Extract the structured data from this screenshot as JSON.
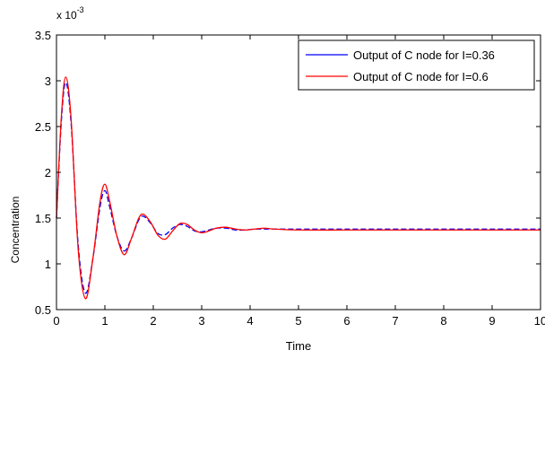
{
  "chart_data": {
    "type": "line",
    "title": "",
    "xlabel": "Time",
    "ylabel": "Concentration",
    "y_multiplier_label": "x 10",
    "y_multiplier_exponent": "-3",
    "xlim": [
      0,
      10
    ],
    "ylim": [
      0.5,
      3.5
    ],
    "x_ticks": [
      0,
      1,
      2,
      3,
      4,
      5,
      6,
      7,
      8,
      9,
      10
    ],
    "y_ticks": [
      0.5,
      1,
      1.5,
      2,
      2.5,
      3,
      3.5
    ],
    "x_tick_labels": [
      "0",
      "1",
      "2",
      "3",
      "4",
      "5",
      "6",
      "7",
      "8",
      "9",
      "10"
    ],
    "y_tick_labels": [
      "0.5",
      "1",
      "1.5",
      "2",
      "2.5",
      "3",
      "3.5"
    ],
    "grid": false,
    "legend_position": "top-right",
    "series": [
      {
        "name": "Output of C node for I=0.36",
        "color": "#0000ff",
        "x": [
          0,
          0.1,
          0.19,
          0.3,
          0.45,
          0.6,
          0.75,
          0.9,
          1.0,
          1.1,
          1.25,
          1.4,
          1.55,
          1.7,
          1.8,
          1.95,
          2.1,
          2.25,
          2.4,
          2.55,
          2.7,
          2.85,
          3.0,
          3.15,
          3.3,
          3.5,
          3.7,
          3.9,
          4.1,
          4.3,
          4.5,
          5.0,
          6.0,
          7.0,
          8.0,
          9.0,
          10.0
        ],
        "y": [
          1.5,
          2.55,
          2.98,
          2.55,
          1.2,
          0.68,
          1.05,
          1.62,
          1.8,
          1.62,
          1.3,
          1.14,
          1.28,
          1.48,
          1.52,
          1.44,
          1.33,
          1.32,
          1.39,
          1.43,
          1.41,
          1.36,
          1.35,
          1.37,
          1.39,
          1.39,
          1.37,
          1.37,
          1.38,
          1.38,
          1.38,
          1.38,
          1.38,
          1.38,
          1.38,
          1.38,
          1.38
        ]
      },
      {
        "name": "Output of C node for I=0.6",
        "color": "#ff0000",
        "x": [
          0,
          0.1,
          0.19,
          0.3,
          0.45,
          0.6,
          0.75,
          0.9,
          1.0,
          1.1,
          1.25,
          1.4,
          1.55,
          1.7,
          1.8,
          1.95,
          2.1,
          2.25,
          2.4,
          2.55,
          2.7,
          2.85,
          3.0,
          3.15,
          3.3,
          3.5,
          3.7,
          3.9,
          4.1,
          4.3,
          4.5,
          5.0,
          6.0,
          7.0,
          8.0,
          9.0,
          10.0
        ],
        "y": [
          1.5,
          2.6,
          3.04,
          2.6,
          1.15,
          0.62,
          1.05,
          1.68,
          1.87,
          1.68,
          1.3,
          1.1,
          1.28,
          1.5,
          1.54,
          1.45,
          1.31,
          1.27,
          1.36,
          1.44,
          1.43,
          1.37,
          1.34,
          1.36,
          1.39,
          1.4,
          1.38,
          1.37,
          1.38,
          1.39,
          1.38,
          1.37,
          1.37,
          1.37,
          1.37,
          1.37,
          1.37
        ]
      }
    ]
  }
}
